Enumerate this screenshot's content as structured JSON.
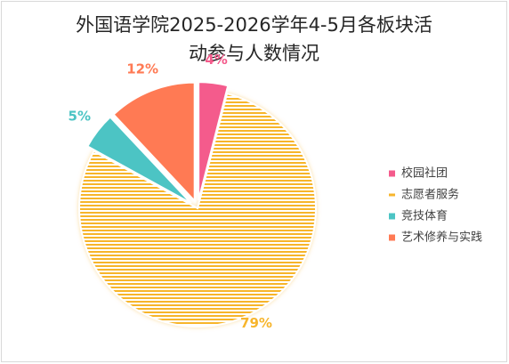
{
  "chart_data": {
    "type": "pie",
    "title_line1": "外国语学院2025-2026学年4-5月各板块活",
    "title_line2": "动参与人数情况",
    "slices": [
      {
        "label": "志愿者服务",
        "value": 79,
        "data_label": "79%",
        "color": "#f7b52c",
        "exploded": false,
        "pattern": "stripes"
      },
      {
        "label": "竞技体育",
        "value": 5,
        "data_label": "5%",
        "color": "#4cc4c4",
        "exploded": true,
        "pattern": "solid"
      },
      {
        "label": "艺术修养与实践",
        "value": 12,
        "data_label": "12%",
        "color": "#ff7a54",
        "exploded": true,
        "pattern": "solid"
      },
      {
        "label": "校园社团",
        "value": 4,
        "data_label": "4%",
        "color": "#f45b8c",
        "exploded": true,
        "pattern": "solid"
      }
    ],
    "legend": {
      "placement": "right",
      "entries": [
        {
          "label": "校园社团",
          "color": "#f45b8c"
        },
        {
          "label": "志愿者服务",
          "color": "#f7b52c"
        },
        {
          "label": "竞技体育",
          "color": "#4cc4c4"
        },
        {
          "label": "艺术修养与实践",
          "color": "#ff7a54"
        }
      ]
    }
  }
}
